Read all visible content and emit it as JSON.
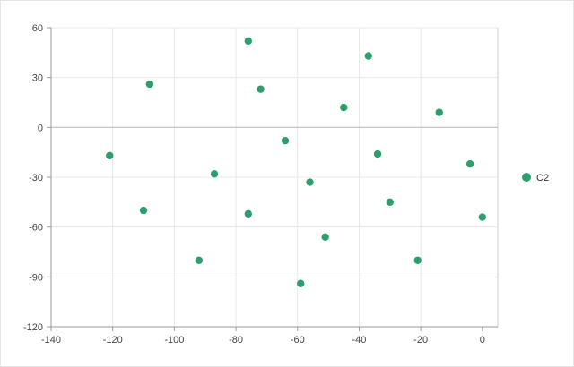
{
  "chart_data": {
    "type": "scatter",
    "title": "",
    "xlabel": "",
    "ylabel": "",
    "xlim": [
      -140,
      5
    ],
    "ylim": [
      -120,
      60
    ],
    "x_ticks": [
      -140,
      -120,
      -100,
      -80,
      -60,
      -40,
      -20,
      0
    ],
    "y_ticks": [
      -120,
      -90,
      -60,
      -30,
      0,
      30,
      60
    ],
    "x_tick_labels": [
      "-140",
      "-120",
      "-100",
      "-80",
      "-60",
      "-40",
      "-20",
      "0"
    ],
    "y_tick_labels": [
      "-120",
      "-90",
      "-60",
      "-30",
      "0",
      "30",
      "60"
    ],
    "grid": true,
    "legend": {
      "position": "right",
      "entries": [
        "C2"
      ]
    },
    "series": [
      {
        "name": "C2",
        "color": "#2e9e6e",
        "points": [
          {
            "x": -121,
            "y": -17
          },
          {
            "x": -110,
            "y": -50
          },
          {
            "x": -108,
            "y": 26
          },
          {
            "x": -92,
            "y": -80
          },
          {
            "x": -87,
            "y": -28
          },
          {
            "x": -76,
            "y": 52
          },
          {
            "x": -76,
            "y": -52
          },
          {
            "x": -72,
            "y": 23
          },
          {
            "x": -64,
            "y": -8
          },
          {
            "x": -59,
            "y": -94
          },
          {
            "x": -56,
            "y": -33
          },
          {
            "x": -51,
            "y": -66
          },
          {
            "x": -45,
            "y": 12
          },
          {
            "x": -37,
            "y": 43
          },
          {
            "x": -34,
            "y": -16
          },
          {
            "x": -30,
            "y": -45
          },
          {
            "x": -21,
            "y": -80
          },
          {
            "x": -14,
            "y": 9
          },
          {
            "x": -4,
            "y": -22
          },
          {
            "x": 0,
            "y": -54
          }
        ]
      }
    ]
  }
}
